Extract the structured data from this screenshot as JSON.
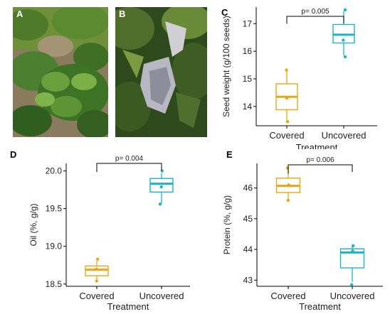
{
  "figure": {
    "panels": {
      "A": {
        "letter": "A"
      },
      "B": {
        "letter": "B"
      },
      "C": {
        "letter": "C"
      },
      "D": {
        "letter": "D"
      },
      "E": {
        "letter": "E"
      }
    }
  },
  "colors": {
    "covered": "#E6A817",
    "uncovered": "#1BB5C3",
    "axis": "#000000",
    "text": "#333333"
  },
  "chart_data": [
    {
      "panel": "C",
      "type": "box",
      "categories": [
        "Covered",
        "Uncovered"
      ],
      "xlabel": "Treatment",
      "ylabel": "Seed weight (g/100 seeds)",
      "ylim": [
        13.3,
        17.6
      ],
      "yticks": [
        "14",
        "15",
        "16",
        "17"
      ],
      "annotation": "p= 0.005",
      "series": [
        {
          "name": "Covered",
          "min": 13.5,
          "q1": 13.88,
          "median": 14.35,
          "q3": 14.82,
          "max": 15.3,
          "points": [
            15.32,
            14.3,
            13.45
          ]
        },
        {
          "name": "Uncovered",
          "min": 15.85,
          "q1": 16.3,
          "median": 16.6,
          "q3": 16.97,
          "max": 17.45,
          "points": [
            17.5,
            16.4,
            15.8
          ]
        }
      ]
    },
    {
      "panel": "D",
      "type": "box",
      "categories": [
        "Covered",
        "Uncovered"
      ],
      "xlabel": "Treatment",
      "ylabel": "Oil (%, g/g)",
      "ylim": [
        18.47,
        20.1
      ],
      "yticks": [
        "18.5",
        "19.0",
        "19.5",
        "20.0"
      ],
      "annotation": "p= 0.004",
      "series": [
        {
          "name": "Covered",
          "min": 18.55,
          "q1": 18.61,
          "median": 18.69,
          "q3": 18.74,
          "max": 18.81,
          "points": [
            18.83,
            18.7,
            18.54
          ]
        },
        {
          "name": "Uncovered",
          "min": 19.57,
          "q1": 19.72,
          "median": 19.83,
          "q3": 19.9,
          "max": 19.97,
          "points": [
            20.0,
            19.79,
            19.56
          ]
        }
      ]
    },
    {
      "panel": "E",
      "type": "box",
      "categories": [
        "Covered",
        "Uncovered"
      ],
      "xlabel": "Treatment",
      "ylabel": "Protein (%, g/g)",
      "ylim": [
        42.8,
        46.8
      ],
      "yticks": [
        "43",
        "44",
        "45",
        "46"
      ],
      "annotation": "p= 0.006",
      "series": [
        {
          "name": "Covered",
          "min": 45.65,
          "q1": 45.85,
          "median": 46.07,
          "q3": 46.32,
          "max": 46.6,
          "points": [
            46.65,
            46.1,
            45.6
          ]
        },
        {
          "name": "Uncovered",
          "min": 42.95,
          "q1": 43.4,
          "median": 43.9,
          "q3": 44.02,
          "max": 44.1,
          "points": [
            44.12,
            43.95,
            42.85
          ]
        }
      ]
    }
  ]
}
